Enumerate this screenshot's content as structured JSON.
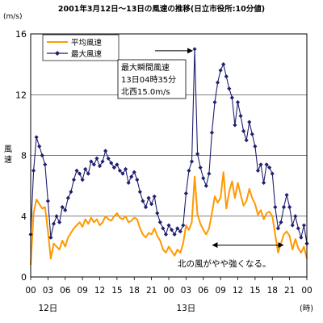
{
  "chart_data": {
    "type": "line",
    "title": "2001年3月12日～13日の風速の推移(日立市役所:10分値)",
    "y_unit": "(m/s)",
    "ylabel": "風速",
    "xlabel": "",
    "x_unit": "(時)",
    "ylim": [
      0,
      16
    ],
    "y_ticks": [
      0,
      4,
      8,
      12,
      16
    ],
    "grid": true,
    "legend_position": "top-left",
    "x_tick_labels": [
      "00",
      "03",
      "06",
      "09",
      "12",
      "15",
      "18",
      "21",
      "00",
      "03",
      "06",
      "09",
      "12",
      "15",
      "18",
      "21",
      "00"
    ],
    "x_day_labels": [
      {
        "label": "12日",
        "hour": 3
      },
      {
        "label": "13日",
        "hour": 27
      }
    ],
    "x_range_hours": [
      0,
      48
    ],
    "series": [
      {
        "name": "平均風速",
        "color": "#ff9900",
        "style": "line",
        "x_hours": [
          0.0,
          0.5,
          1.0,
          1.5,
          2.0,
          2.5,
          3.0,
          3.5,
          4.0,
          4.5,
          5.0,
          5.5,
          6.0,
          6.5,
          7.0,
          7.5,
          8.0,
          8.5,
          9.0,
          9.5,
          10.0,
          10.5,
          11.0,
          11.5,
          12.0,
          12.5,
          13.0,
          13.5,
          14.0,
          14.5,
          15.0,
          15.5,
          16.0,
          16.5,
          17.0,
          17.5,
          18.0,
          18.5,
          19.0,
          19.5,
          20.0,
          20.5,
          21.0,
          21.5,
          22.0,
          22.5,
          23.0,
          23.5,
          24.0,
          24.5,
          25.0,
          25.5,
          26.0,
          26.5,
          27.0,
          27.5,
          28.0,
          28.5,
          29.0,
          29.5,
          30.0,
          30.5,
          31.0,
          31.5,
          32.0,
          32.5,
          33.0,
          33.5,
          34.0,
          34.5,
          35.0,
          35.5,
          36.0,
          36.5,
          37.0,
          37.5,
          38.0,
          38.5,
          39.0,
          39.5,
          40.0,
          40.5,
          41.0,
          41.5,
          42.0,
          42.5,
          43.0,
          43.5,
          44.0,
          44.5,
          45.0,
          45.5,
          46.0,
          46.5,
          47.0,
          47.5,
          48.0
        ],
        "values": [
          0.8,
          4.2,
          5.1,
          4.8,
          4.5,
          4.6,
          3.0,
          1.2,
          2.2,
          2.0,
          1.8,
          2.4,
          2.0,
          2.6,
          2.9,
          3.2,
          3.4,
          3.6,
          3.3,
          3.8,
          3.5,
          3.9,
          3.6,
          3.8,
          3.4,
          3.6,
          4.0,
          3.8,
          3.7,
          4.0,
          4.2,
          3.9,
          3.8,
          4.0,
          3.6,
          3.7,
          3.9,
          3.8,
          3.2,
          2.8,
          2.6,
          2.9,
          2.8,
          3.2,
          2.7,
          2.4,
          1.8,
          1.6,
          2.0,
          1.7,
          1.4,
          1.8,
          1.6,
          2.2,
          3.4,
          3.1,
          3.6,
          6.6,
          4.1,
          3.5,
          3.1,
          2.8,
          3.2,
          4.2,
          5.3,
          4.9,
          5.2,
          6.9,
          4.5,
          5.6,
          6.3,
          5.2,
          6.2,
          5.4,
          4.7,
          5.0,
          5.8,
          5.2,
          4.8,
          4.1,
          4.4,
          3.8,
          4.2,
          4.3,
          4.0,
          2.8,
          1.6,
          2.2,
          2.8,
          3.0,
          2.7,
          1.8,
          2.5,
          1.9,
          1.6,
          2.0,
          1.2
        ]
      },
      {
        "name": "最大風速",
        "color": "#1f1f6e",
        "style": "line-markers",
        "marker": "diamond",
        "x_hours": [
          0.0,
          0.5,
          1.0,
          1.5,
          2.0,
          2.5,
          3.0,
          3.5,
          4.0,
          4.5,
          5.0,
          5.5,
          6.0,
          6.5,
          7.0,
          7.5,
          8.0,
          8.5,
          9.0,
          9.5,
          10.0,
          10.5,
          11.0,
          11.5,
          12.0,
          12.5,
          13.0,
          13.5,
          14.0,
          14.5,
          15.0,
          15.5,
          16.0,
          16.5,
          17.0,
          17.5,
          18.0,
          18.5,
          19.0,
          19.5,
          20.0,
          20.5,
          21.0,
          21.5,
          22.0,
          22.5,
          23.0,
          23.5,
          24.0,
          24.5,
          25.0,
          25.5,
          26.0,
          26.5,
          27.0,
          27.5,
          28.0,
          28.5,
          29.0,
          29.5,
          30.0,
          30.5,
          31.0,
          31.5,
          32.0,
          32.5,
          33.0,
          33.5,
          34.0,
          34.5,
          35.0,
          35.5,
          36.0,
          36.5,
          37.0,
          37.5,
          38.0,
          38.5,
          39.0,
          39.5,
          40.0,
          40.5,
          41.0,
          41.5,
          42.0,
          42.5,
          43.0,
          43.5,
          44.0,
          44.5,
          45.0,
          45.5,
          46.0,
          46.5,
          47.0,
          47.5,
          48.0
        ],
        "values": [
          2.8,
          7.0,
          9.2,
          8.6,
          8.0,
          7.4,
          5.0,
          2.6,
          3.5,
          4.0,
          3.6,
          4.6,
          4.4,
          5.2,
          5.6,
          6.4,
          7.0,
          6.8,
          6.4,
          7.1,
          6.8,
          7.6,
          7.4,
          7.8,
          7.3,
          7.6,
          8.3,
          7.8,
          7.5,
          7.2,
          7.4,
          7.0,
          6.8,
          7.1,
          6.2,
          6.6,
          6.9,
          6.4,
          5.6,
          5.0,
          4.6,
          5.2,
          4.8,
          5.3,
          4.2,
          3.6,
          3.2,
          2.8,
          3.4,
          3.1,
          2.8,
          3.2,
          3.0,
          3.4,
          5.5,
          7.0,
          7.6,
          15.0,
          8.1,
          7.2,
          6.5,
          6.0,
          6.8,
          9.5,
          11.5,
          12.8,
          13.6,
          14.0,
          13.2,
          12.4,
          11.8,
          10.0,
          11.5,
          10.6,
          9.6,
          9.0,
          10.2,
          9.4,
          8.6,
          7.0,
          7.4,
          6.2,
          7.4,
          7.2,
          6.8,
          4.6,
          3.2,
          3.6,
          4.6,
          5.4,
          4.6,
          3.4,
          4.0,
          3.2,
          2.6,
          3.4,
          2.2
        ]
      }
    ],
    "annotations": [
      {
        "lines": [
          "最大瞬間風速",
          "13日04時35分",
          "北西15.0m/s"
        ],
        "points_to_hour": 28.5,
        "points_to_value": 15.0
      },
      {
        "text": "北の風がやや強くなる。",
        "span_hours": [
          31.5,
          44.0
        ],
        "at_value": 2.1
      }
    ]
  }
}
